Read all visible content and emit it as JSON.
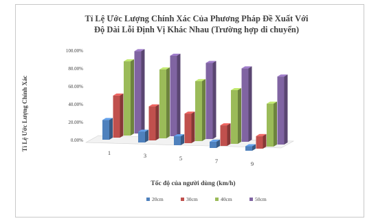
{
  "chart_data": {
    "type": "bar",
    "title_line1": "Tỉ Lệ Ước Lượng Chính Xác Của Phương Pháp Đề Xuất Với",
    "title_line2": "Độ Dài Lỗi Định Vị Khác Nhau (Trường hợp di chuyển)",
    "xlabel": "Tốc độ của người dùng (km/h)",
    "ylabel": "Tỉ Lệ Ước Lượng Chính Xác",
    "categories": [
      "1",
      "3",
      "5",
      "7",
      "9"
    ],
    "yticks": [
      "0.00%",
      "20.00%",
      "40.00%",
      "60.00%",
      "80.00%",
      "100.00%"
    ],
    "ylim": [
      0,
      100
    ],
    "series": [
      {
        "name": "20cm",
        "color": "#4f81bd",
        "values": [
          22,
          12,
          10,
          7,
          5
        ]
      },
      {
        "name": "30cm",
        "color": "#c0504d",
        "values": [
          47,
          38,
          33,
          23,
          14
        ]
      },
      {
        "name": "40cm",
        "color": "#9bbb59",
        "values": [
          83,
          77,
          67,
          60,
          48
        ]
      },
      {
        "name": "50cm",
        "color": "#8064a2",
        "values": [
          92,
          90,
          85,
          82,
          76
        ]
      }
    ],
    "legend_position": "bottom",
    "grid": false,
    "style": "3d-clustered-column"
  }
}
